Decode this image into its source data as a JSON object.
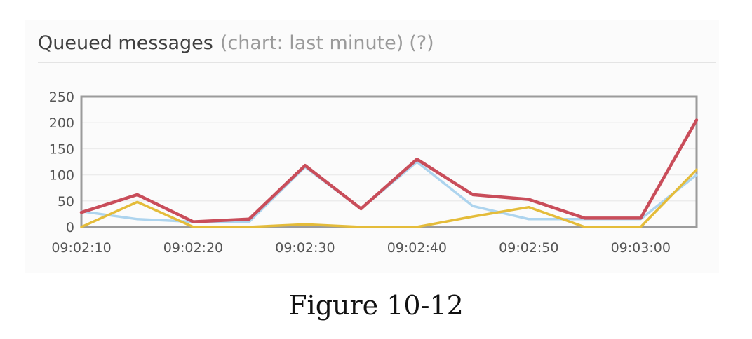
{
  "header": {
    "title": "Queued messages",
    "subtitle": "(chart: last minute)",
    "help": "(?)"
  },
  "caption": "Figure 10-12",
  "chart_data": {
    "type": "line",
    "title": "Queued messages",
    "ylim": [
      0,
      250
    ],
    "yticks": [
      "250",
      "200",
      "150",
      "100",
      "50",
      "0"
    ],
    "ytick_values": [
      250,
      200,
      150,
      100,
      50,
      0
    ],
    "xticks": [
      "09:02:10",
      "09:02:20",
      "09:02:30",
      "09:02:40",
      "09:02:50",
      "09:03:00"
    ],
    "xtick_positions": [
      0,
      2,
      4,
      6,
      8,
      10
    ],
    "grid": true,
    "x": [
      0,
      1,
      2,
      3,
      4,
      5,
      6,
      7,
      8,
      9,
      10,
      11
    ],
    "series": [
      {
        "color": "#add4ee",
        "values": [
          30,
          15,
          10,
          10,
          115,
          35,
          125,
          40,
          15,
          15,
          15,
          100
        ]
      },
      {
        "color": "#e4bc3a",
        "values": [
          0,
          48,
          0,
          0,
          5,
          0,
          0,
          20,
          38,
          0,
          0,
          110
        ]
      },
      {
        "color": "#c94d5a",
        "values": [
          28,
          62,
          10,
          15,
          118,
          35,
          130,
          62,
          53,
          17,
          17,
          205
        ]
      }
    ]
  }
}
